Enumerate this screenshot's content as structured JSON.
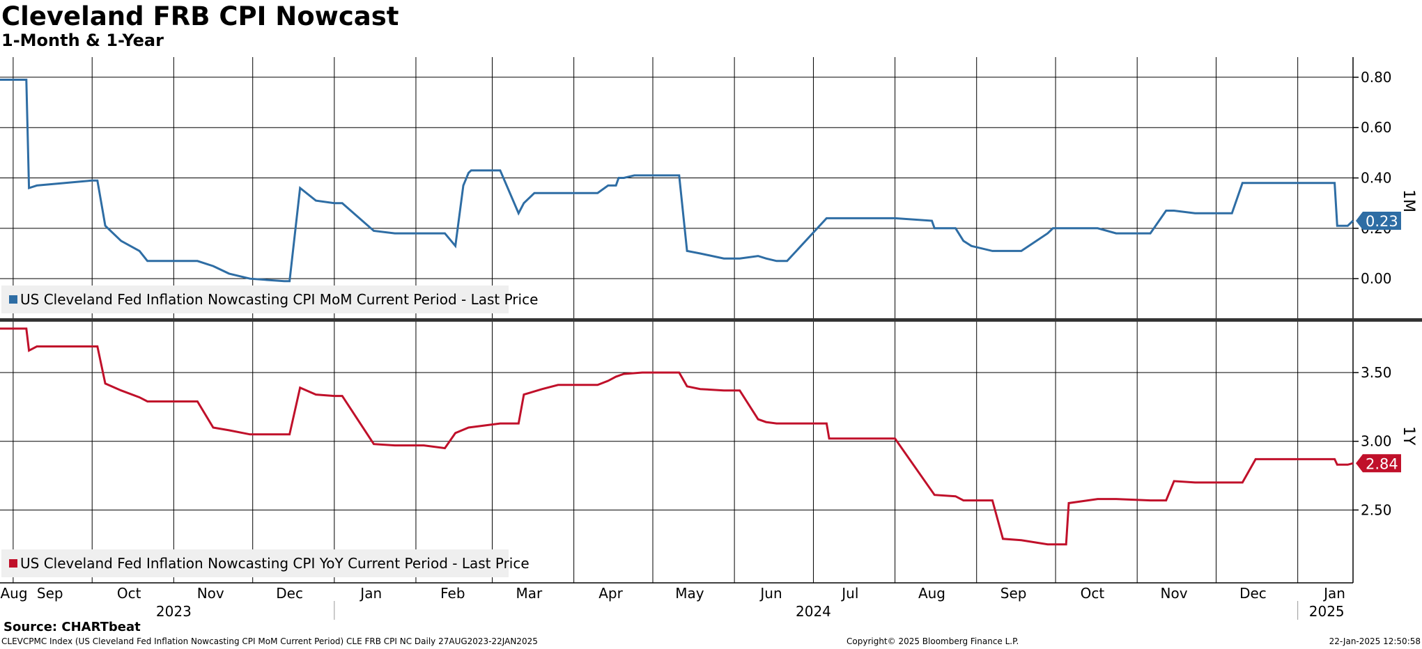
{
  "header": {
    "title": "Cleveland FRB CPI Nowcast",
    "subtitle": "1-Month & 1-Year"
  },
  "footer": {
    "source": "Source: CHARTbeat",
    "description": "CLEVCPMC Index (US Cleveland Fed Inflation Nowcasting CPI MoM Current Period) CLE FRB CPI NC  Daily 27AUG2023-22JAN2025",
    "copyright": "Copyright© 2025 Bloomberg Finance L.P.",
    "timestamp": "22-Jan-2025 12:50:58"
  },
  "x_axis": {
    "months": [
      {
        "label": "Aug",
        "date": "2023-08-27"
      },
      {
        "label": "Sep",
        "date": "2023-09-15"
      },
      {
        "label": "Oct",
        "date": "2023-10-15"
      },
      {
        "label": "Nov",
        "date": "2023-11-15"
      },
      {
        "label": "Dec",
        "date": "2023-12-15"
      },
      {
        "label": "Jan",
        "date": "2024-01-15"
      },
      {
        "label": "Feb",
        "date": "2024-02-15"
      },
      {
        "label": "Mar",
        "date": "2024-03-15"
      },
      {
        "label": "Apr",
        "date": "2024-04-15"
      },
      {
        "label": "May",
        "date": "2024-05-15"
      },
      {
        "label": "Jun",
        "date": "2024-06-15"
      },
      {
        "label": "Jul",
        "date": "2024-07-15"
      },
      {
        "label": "Aug",
        "date": "2024-08-15"
      },
      {
        "label": "Sep",
        "date": "2024-09-15"
      },
      {
        "label": "Oct",
        "date": "2024-10-15"
      },
      {
        "label": "Nov",
        "date": "2024-11-15"
      },
      {
        "label": "Dec",
        "date": "2024-12-15"
      },
      {
        "label": "Jan",
        "date": "2025-01-15"
      }
    ],
    "gridlines": [
      "2023-09-01",
      "2023-10-01",
      "2023-11-01",
      "2023-12-01",
      "2024-01-01",
      "2024-02-01",
      "2024-03-01",
      "2024-04-01",
      "2024-05-01",
      "2024-06-01",
      "2024-07-01",
      "2024-08-01",
      "2024-09-01",
      "2024-10-01",
      "2024-11-01",
      "2024-12-01",
      "2025-01-01"
    ],
    "years": [
      {
        "label": "2023",
        "date": "2023-11-01"
      },
      {
        "label": "2024",
        "date": "2024-07-01"
      },
      {
        "label": "2025",
        "date": "2025-01-12"
      }
    ],
    "year_separators": [
      "2024-01-01",
      "2025-01-01"
    ],
    "range": [
      "2023-08-27",
      "2025-01-22"
    ]
  },
  "chart_data": [
    {
      "type": "line",
      "panel_label": "1M",
      "legend": "US Cleveland Fed Inflation Nowcasting CPI MoM Current Period - Last Price",
      "color": "#2e6da4",
      "last_value_label": "0.23",
      "last_value": 0.23,
      "ylim": [
        -0.16,
        0.88
      ],
      "yticks": [
        "0.00",
        "0.20",
        "0.40",
        "0.60",
        "0.80"
      ],
      "ytick_values": [
        0.0,
        0.2,
        0.4,
        0.6,
        0.8
      ],
      "x": [
        "2023-08-27",
        "2023-09-06",
        "2023-09-07",
        "2023-09-10",
        "2023-10-01",
        "2023-10-03",
        "2023-10-06",
        "2023-10-12",
        "2023-10-19",
        "2023-10-22",
        "2023-11-01",
        "2023-11-10",
        "2023-11-16",
        "2023-11-22",
        "2023-11-30",
        "2023-12-13",
        "2023-12-15",
        "2023-12-19",
        "2023-12-25",
        "2024-01-01",
        "2024-01-04",
        "2024-01-16",
        "2024-01-24",
        "2024-02-02",
        "2024-02-04",
        "2024-02-12",
        "2024-02-16",
        "2024-02-19",
        "2024-02-21",
        "2024-02-22",
        "2024-03-04",
        "2024-03-11",
        "2024-03-13",
        "2024-03-17",
        "2024-03-20",
        "2024-03-26",
        "2024-03-31",
        "2024-04-10",
        "2024-04-14",
        "2024-04-15",
        "2024-04-17",
        "2024-04-18",
        "2024-04-20",
        "2024-04-24",
        "2024-04-27",
        "2024-05-04",
        "2024-05-11",
        "2024-05-14",
        "2024-05-19",
        "2024-05-28",
        "2024-05-29",
        "2024-05-30",
        "2024-06-03",
        "2024-06-10",
        "2024-06-13",
        "2024-06-17",
        "2024-06-21",
        "2024-07-06",
        "2024-07-07",
        "2024-07-10",
        "2024-07-27",
        "2024-08-01",
        "2024-08-15",
        "2024-08-16",
        "2024-08-24",
        "2024-08-27",
        "2024-08-30",
        "2024-09-07",
        "2024-09-11",
        "2024-09-18",
        "2024-09-28",
        "2024-09-30",
        "2024-10-05",
        "2024-10-06",
        "2024-10-17",
        "2024-10-24",
        "2024-11-06",
        "2024-11-12",
        "2024-11-15",
        "2024-11-23",
        "2024-11-27",
        "2024-12-07",
        "2024-12-11",
        "2024-12-16",
        "2024-12-31",
        "2025-01-07",
        "2025-01-15",
        "2025-01-16",
        "2025-01-18",
        "2025-01-20",
        "2025-01-22"
      ],
      "y": [
        0.79,
        0.79,
        0.36,
        0.37,
        0.39,
        0.39,
        0.21,
        0.15,
        0.11,
        0.07,
        0.07,
        0.07,
        0.05,
        0.02,
        0.0,
        -0.01,
        -0.01,
        0.36,
        0.31,
        0.3,
        0.3,
        0.19,
        0.18,
        0.18,
        0.18,
        0.18,
        0.13,
        0.37,
        0.42,
        0.43,
        0.43,
        0.26,
        0.3,
        0.34,
        0.34,
        0.34,
        0.34,
        0.34,
        0.37,
        0.37,
        0.37,
        0.4,
        0.4,
        0.41,
        0.41,
        0.41,
        0.41,
        0.11,
        0.1,
        0.08,
        0.08,
        0.08,
        0.08,
        0.09,
        0.08,
        0.07,
        0.07,
        0.24,
        0.24,
        0.24,
        0.24,
        0.24,
        0.23,
        0.2,
        0.2,
        0.15,
        0.13,
        0.11,
        0.11,
        0.11,
        0.18,
        0.2,
        0.2,
        0.2,
        0.2,
        0.18,
        0.18,
        0.27,
        0.27,
        0.26,
        0.26,
        0.26,
        0.38,
        0.38,
        0.38,
        0.38,
        0.38,
        0.21,
        0.21,
        0.21,
        0.23
      ]
    },
    {
      "type": "line",
      "panel_label": "1Y",
      "legend": "US Cleveland Fed Inflation Nowcasting CPI YoY Current Period - Last Price",
      "color": "#c0102a",
      "last_value_label": "2.84",
      "last_value": 2.84,
      "ylim": [
        1.97,
        3.87
      ],
      "yticks": [
        "2.50",
        "3.00",
        "3.50"
      ],
      "ytick_values": [
        2.5,
        3.0,
        3.5
      ],
      "x": [
        "2023-08-27",
        "2023-09-06",
        "2023-09-07",
        "2023-09-10",
        "2023-10-01",
        "2023-10-03",
        "2023-10-06",
        "2023-10-12",
        "2023-10-19",
        "2023-10-22",
        "2023-11-10",
        "2023-11-16",
        "2023-11-22",
        "2023-11-30",
        "2023-12-13",
        "2023-12-15",
        "2023-12-19",
        "2023-12-25",
        "2024-01-01",
        "2024-01-04",
        "2024-01-16",
        "2024-01-24",
        "2024-02-02",
        "2024-02-04",
        "2024-02-12",
        "2024-02-16",
        "2024-02-21",
        "2024-03-04",
        "2024-03-11",
        "2024-03-13",
        "2024-03-20",
        "2024-03-26",
        "2024-04-10",
        "2024-04-14",
        "2024-04-17",
        "2024-04-20",
        "2024-04-27",
        "2024-05-04",
        "2024-05-11",
        "2024-05-14",
        "2024-05-19",
        "2024-05-28",
        "2024-05-29",
        "2024-06-03",
        "2024-06-10",
        "2024-06-13",
        "2024-06-17",
        "2024-06-21",
        "2024-07-06",
        "2024-07-07",
        "2024-07-10",
        "2024-08-01",
        "2024-08-16",
        "2024-08-24",
        "2024-08-27",
        "2024-09-07",
        "2024-09-11",
        "2024-09-18",
        "2024-09-28",
        "2024-09-30",
        "2024-10-05",
        "2024-10-06",
        "2024-10-17",
        "2024-10-24",
        "2024-11-06",
        "2024-11-12",
        "2024-11-15",
        "2024-11-23",
        "2024-12-07",
        "2024-12-11",
        "2024-12-16",
        "2025-01-07",
        "2025-01-15",
        "2025-01-16",
        "2025-01-20",
        "2025-01-22"
      ],
      "y": [
        3.82,
        3.82,
        3.66,
        3.69,
        3.69,
        3.69,
        3.42,
        3.37,
        3.32,
        3.29,
        3.29,
        3.1,
        3.08,
        3.05,
        3.05,
        3.05,
        3.39,
        3.34,
        3.33,
        3.33,
        2.98,
        2.97,
        2.97,
        2.97,
        2.95,
        3.06,
        3.1,
        3.13,
        3.13,
        3.34,
        3.38,
        3.41,
        3.41,
        3.44,
        3.47,
        3.49,
        3.5,
        3.5,
        3.5,
        3.4,
        3.38,
        3.37,
        3.37,
        3.37,
        3.16,
        3.14,
        3.13,
        3.13,
        3.13,
        3.02,
        3.02,
        3.02,
        2.61,
        2.6,
        2.57,
        2.57,
        2.29,
        2.28,
        2.25,
        2.25,
        2.25,
        2.55,
        2.58,
        2.58,
        2.57,
        2.57,
        2.71,
        2.7,
        2.7,
        2.7,
        2.87,
        2.87,
        2.87,
        2.83,
        2.83,
        2.84
      ]
    }
  ]
}
